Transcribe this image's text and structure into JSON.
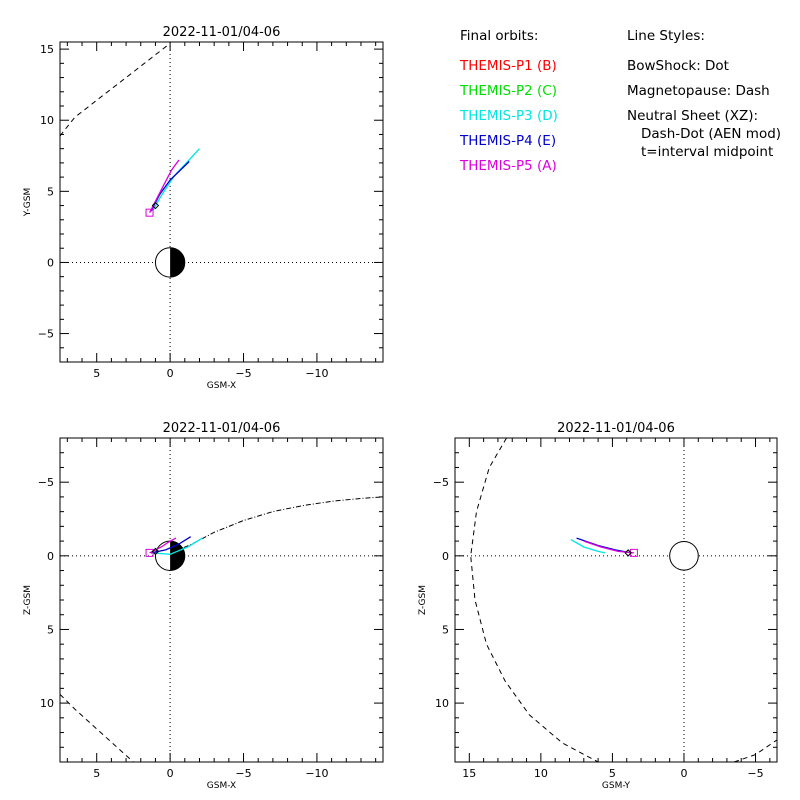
{
  "legend": {
    "orbits_heading": "Final orbits:",
    "orbits": [
      {
        "label": "THEMIS-P1 (B)",
        "color": "#ff0000"
      },
      {
        "label": "THEMIS-P2 (C)",
        "color": "#00dd00"
      },
      {
        "label": "THEMIS-P3 (D)",
        "color": "#00e5e5"
      },
      {
        "label": "THEMIS-P4 (E)",
        "color": "#0000cc"
      },
      {
        "label": "THEMIS-P5 (A)",
        "color": "#dd00dd"
      }
    ],
    "styles_heading": "Line Styles:",
    "styles": [
      "BowShock: Dot",
      "Magnetopause: Dash",
      "Neutral Sheet (XZ):",
      "Dash-Dot (AEN mod)",
      "t=interval midpoint"
    ]
  },
  "chart_data": [
    {
      "id": "xy",
      "type": "line",
      "title": "2022-11-01/04-06",
      "xlabel": "GSM-X",
      "ylabel": "Y-GSM",
      "xlim": [
        7.5,
        -14.5
      ],
      "ylim": [
        15.5,
        -7.0
      ],
      "xticks": [
        5,
        0,
        -5,
        -10
      ],
      "yticks": [
        -5,
        0,
        5,
        10,
        15
      ],
      "earth": {
        "center": [
          0,
          0
        ],
        "radius": 1
      },
      "magnetopause": {
        "style": "dash",
        "points": [
          [
            7.5,
            8.9
          ],
          [
            6.5,
            10.2
          ],
          [
            4.5,
            11.8
          ],
          [
            2.5,
            13.4
          ],
          [
            1.0,
            14.6
          ],
          [
            0,
            15.4
          ]
        ]
      },
      "series": [
        {
          "color": "#00e5e5",
          "points": [
            [
              1.2,
              3.6
            ],
            [
              0.6,
              4.7
            ],
            [
              -0.3,
              6.1
            ],
            [
              -1.2,
              7.1
            ],
            [
              -2.0,
              8.0
            ]
          ]
        },
        {
          "color": "#0000cc",
          "points": [
            [
              1.3,
              3.6
            ],
            [
              0.7,
              4.8
            ],
            [
              0,
              5.8
            ],
            [
              -0.8,
              6.6
            ],
            [
              -1.3,
              7.1
            ]
          ]
        },
        {
          "color": "#dd00dd",
          "points": [
            [
              1.4,
              3.5
            ],
            [
              1.0,
              4.3
            ],
            [
              0.4,
              5.5
            ],
            [
              -0.1,
              6.5
            ],
            [
              -0.6,
              7.2
            ]
          ]
        }
      ],
      "start_markers": [
        {
          "type": "square",
          "color": "#dd00dd",
          "at": [
            1.4,
            3.5
          ]
        },
        {
          "type": "diamond",
          "color": "#000000",
          "at": [
            1.0,
            4.0
          ]
        }
      ]
    },
    {
      "id": "xz",
      "type": "line",
      "title": "2022-11-01/04-06",
      "xlabel": "GSM-X",
      "ylabel": "Z-GSM",
      "xlim": [
        7.5,
        -14.5
      ],
      "ylim": [
        -8.0,
        14.0
      ],
      "xticks": [
        5,
        0,
        -5,
        -10
      ],
      "yticks": [
        -5,
        0,
        5,
        10
      ],
      "earth": {
        "center": [
          0,
          0
        ],
        "radius": 1
      },
      "magnetopause": {
        "style": "dash",
        "points": [
          [
            7.5,
            9.4
          ],
          [
            6.5,
            10.4
          ],
          [
            4.5,
            12.2
          ],
          [
            2.5,
            14.0
          ]
        ]
      },
      "neutral_sheet": {
        "style": "dashdot",
        "points": [
          [
            -0.3,
            -0.3
          ],
          [
            -1.5,
            -0.8
          ],
          [
            -3,
            -1.6
          ],
          [
            -5,
            -2.4
          ],
          [
            -7,
            -3.0
          ],
          [
            -9,
            -3.4
          ],
          [
            -11,
            -3.7
          ],
          [
            -13,
            -3.9
          ],
          [
            -14.5,
            -4.0
          ]
        ]
      },
      "series": [
        {
          "color": "#00e5e5",
          "points": [
            [
              1.2,
              -0.2
            ],
            [
              0,
              -0.1
            ],
            [
              -1.2,
              -0.6
            ],
            [
              -2.2,
              -1.2
            ]
          ]
        },
        {
          "color": "#0000cc",
          "points": [
            [
              1.3,
              -0.2
            ],
            [
              0.3,
              -0.4
            ],
            [
              -0.6,
              -0.8
            ],
            [
              -1.4,
              -1.3
            ]
          ]
        },
        {
          "color": "#dd00dd",
          "points": [
            [
              1.4,
              -0.2
            ],
            [
              0.6,
              -0.6
            ],
            [
              0,
              -1.0
            ],
            [
              -0.4,
              -1.2
            ]
          ]
        }
      ],
      "start_markers": [
        {
          "type": "square",
          "color": "#dd00dd",
          "at": [
            1.4,
            -0.2
          ]
        },
        {
          "type": "diamond",
          "color": "#000000",
          "at": [
            1.0,
            -0.3
          ]
        }
      ]
    },
    {
      "id": "yz",
      "type": "line",
      "title": "2022-11-01/04-06",
      "xlabel": "GSM-Y",
      "ylabel": "Z-GSM",
      "xlim": [
        16.0,
        -6.5
      ],
      "ylim": [
        -8.0,
        14.0
      ],
      "xticks": [
        15,
        10,
        5,
        0,
        -5
      ],
      "yticks": [
        -5,
        0,
        5,
        10
      ],
      "earth": {
        "center": [
          0,
          0
        ],
        "radius": 1
      },
      "magnetopause": {
        "style": "dash",
        "points": [
          [
            12.4,
            -8.0
          ],
          [
            13.6,
            -6.0
          ],
          [
            14.5,
            -3.0
          ],
          [
            14.9,
            0
          ],
          [
            14.6,
            3.0
          ],
          [
            13.8,
            6.0
          ],
          [
            12.5,
            8.5
          ],
          [
            10.8,
            10.8
          ],
          [
            8.5,
            12.7
          ],
          [
            6.0,
            14.0
          ]
        ]
      },
      "magnetopause_right": {
        "style": "dash",
        "points": [
          [
            -3.5,
            14.0
          ],
          [
            -5.0,
            13.5
          ],
          [
            -6.5,
            12.5
          ]
        ]
      },
      "series": [
        {
          "color": "#00e5e5",
          "points": [
            [
              7.9,
              -1.1
            ],
            [
              7.0,
              -0.6
            ],
            [
              6.0,
              -0.3
            ],
            [
              5.5,
              -0.2
            ]
          ]
        },
        {
          "color": "#0000cc",
          "points": [
            [
              7.5,
              -1.2
            ],
            [
              6.0,
              -0.7
            ],
            [
              4.8,
              -0.4
            ],
            [
              3.7,
              -0.2
            ]
          ]
        },
        {
          "color": "#dd00dd",
          "points": [
            [
              7.0,
              -1.0
            ],
            [
              5.8,
              -0.6
            ],
            [
              4.6,
              -0.3
            ],
            [
              3.5,
              -0.2
            ]
          ]
        }
      ],
      "start_markers": [
        {
          "type": "square",
          "color": "#dd00dd",
          "at": [
            3.5,
            -0.2
          ]
        },
        {
          "type": "diamond",
          "color": "#000000",
          "at": [
            3.9,
            -0.2
          ]
        }
      ]
    }
  ]
}
